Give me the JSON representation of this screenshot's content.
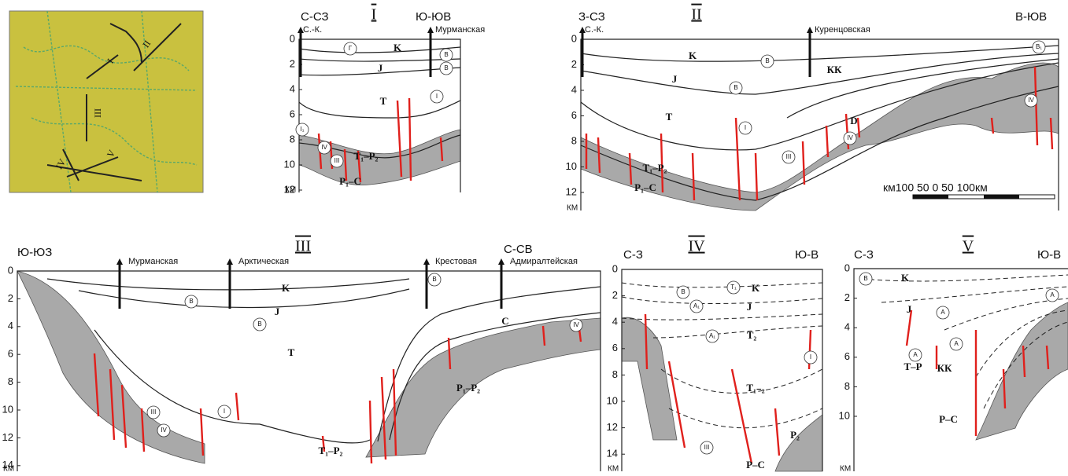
{
  "map": {
    "labels": [
      "I",
      "II",
      "III",
      "IV",
      "V"
    ]
  },
  "sections": [
    {
      "title": "I",
      "left": "С-СЗ",
      "right": "Ю-ЮВ",
      "depth_ticks": [
        0,
        2,
        4,
        6,
        8,
        10,
        12
      ],
      "depth_unit": "КМ",
      "wells": [
        "С.-К.",
        "Мурманская"
      ],
      "layers": [
        "K",
        "J",
        "T",
        "T₁–P₂",
        "P₁–C"
      ],
      "markers": [
        "Г",
        "В",
        "В",
        "I",
        "I₁",
        "IV",
        "III"
      ]
    },
    {
      "title": "II",
      "left": "З-СЗ",
      "right": "В-ЮВ",
      "depth_ticks": [
        0,
        2,
        4,
        6,
        8,
        10,
        12
      ],
      "depth_unit": "КМ",
      "wells": [
        "С.-К.",
        "Куренцовская"
      ],
      "layers": [
        "K",
        "J",
        "T",
        "T₁–P₂",
        "P₁–C",
        "КК",
        "D"
      ],
      "markers": [
        "В",
        "В",
        "I",
        "III",
        "IV",
        "IV",
        "В₁"
      ],
      "scale_bar": "км100  50    0    50   100км"
    },
    {
      "title": "III",
      "left": "Ю-ЮЗ",
      "right": "С-СВ",
      "depth_ticks": [
        0,
        2,
        4,
        6,
        8,
        10,
        12,
        14
      ],
      "depth_unit": "КМ",
      "wells": [
        "Мурманская",
        "Арктическая",
        "Крестовая",
        "Адмиралтейская"
      ],
      "layers": [
        "K",
        "J",
        "T",
        "T₁–P₂",
        "P₁–P₂",
        "C"
      ],
      "markers": [
        "В",
        "В",
        "В",
        "I",
        "III",
        "IV",
        "IV"
      ]
    },
    {
      "title": "IV",
      "left": "С-З",
      "right": "Ю-В",
      "depth_ticks": [
        0,
        2,
        4,
        6,
        8,
        10,
        12,
        14
      ],
      "depth_unit": "КМ",
      "wells": [],
      "layers": [
        "K",
        "J",
        "T₂",
        "T₁₋₂",
        "P₂",
        "P–C"
      ],
      "markers": [
        "T₁",
        "В",
        "А₁",
        "А₁",
        "I",
        "III"
      ]
    },
    {
      "title": "V",
      "left": "С-З",
      "right": "Ю-В",
      "depth_ticks": [
        0,
        2,
        4,
        6,
        8,
        10
      ],
      "depth_unit": "КМ",
      "wells": [],
      "layers": [
        "K",
        "J",
        "T–P",
        "КК",
        "P–C"
      ],
      "markers": [
        "В",
        "А",
        "А",
        "А",
        "А"
      ]
    }
  ]
}
